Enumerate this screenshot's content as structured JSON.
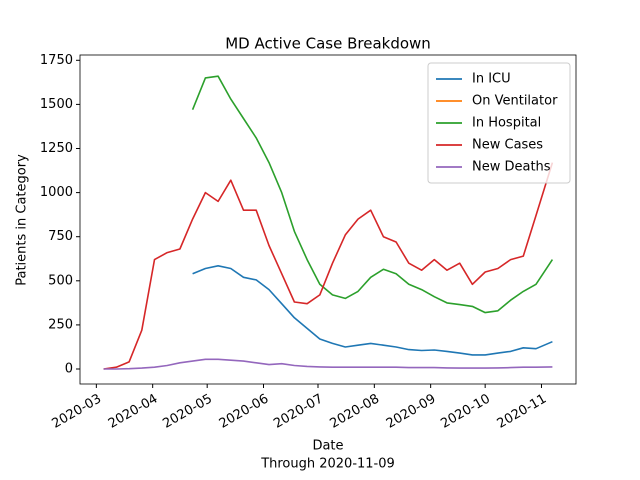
{
  "chart_data": {
    "type": "line",
    "title": "MD Active Case Breakdown",
    "xlabel": "Date",
    "xlabel_sub": "Through 2020-11-09",
    "ylabel": "Patients in Category",
    "x": [
      "2020-03-05",
      "2020-03-12",
      "2020-03-19",
      "2020-03-26",
      "2020-04-02",
      "2020-04-09",
      "2020-04-16",
      "2020-04-23",
      "2020-04-30",
      "2020-05-07",
      "2020-05-14",
      "2020-05-21",
      "2020-05-28",
      "2020-06-04",
      "2020-06-11",
      "2020-06-18",
      "2020-06-25",
      "2020-07-02",
      "2020-07-09",
      "2020-07-16",
      "2020-07-23",
      "2020-07-30",
      "2020-08-06",
      "2020-08-13",
      "2020-08-20",
      "2020-08-27",
      "2020-09-03",
      "2020-09-10",
      "2020-09-17",
      "2020-09-24",
      "2020-10-01",
      "2020-10-08",
      "2020-10-15",
      "2020-10-22",
      "2020-10-29",
      "2020-11-07"
    ],
    "series": [
      {
        "name": "In ICU",
        "color": "#1f77b4",
        "values": [
          null,
          null,
          null,
          null,
          null,
          null,
          null,
          540,
          570,
          585,
          570,
          520,
          505,
          450,
          370,
          290,
          230,
          170,
          145,
          125,
          135,
          145,
          135,
          125,
          110,
          105,
          108,
          100,
          90,
          80,
          80,
          90,
          100,
          120,
          115,
          155
        ]
      },
      {
        "name": "On Ventilator",
        "color": "#ff7f0e",
        "values": [
          null,
          null,
          null,
          null,
          null,
          null,
          null,
          null,
          null,
          null,
          null,
          null,
          null,
          null,
          null,
          null,
          null,
          null,
          null,
          null,
          null,
          null,
          null,
          null,
          null,
          null,
          null,
          null,
          null,
          null,
          null,
          null,
          null,
          null,
          null,
          null
        ]
      },
      {
        "name": "In Hospital",
        "color": "#2ca02c",
        "values": [
          null,
          null,
          null,
          null,
          null,
          null,
          null,
          1470,
          1650,
          1660,
          1530,
          1420,
          1310,
          1170,
          1000,
          780,
          620,
          480,
          420,
          400,
          440,
          520,
          565,
          540,
          480,
          450,
          410,
          375,
          365,
          355,
          320,
          330,
          390,
          440,
          480,
          620
        ]
      },
      {
        "name": "New Cases",
        "color": "#d62728",
        "values": [
          0,
          10,
          40,
          220,
          620,
          660,
          680,
          850,
          1000,
          950,
          1070,
          900,
          900,
          700,
          540,
          380,
          370,
          420,
          600,
          760,
          850,
          900,
          750,
          720,
          600,
          560,
          620,
          560,
          600,
          480,
          550,
          570,
          620,
          640,
          870,
          1170
        ]
      },
      {
        "name": "New Deaths",
        "color": "#9467bd",
        "values": [
          0,
          0,
          2,
          5,
          10,
          20,
          35,
          45,
          55,
          55,
          50,
          45,
          35,
          25,
          30,
          20,
          15,
          12,
          10,
          10,
          10,
          10,
          10,
          10,
          8,
          8,
          8,
          6,
          5,
          5,
          5,
          6,
          8,
          10,
          10,
          12
        ]
      }
    ],
    "xlim": [
      "2020-02-21",
      "2020-11-20"
    ],
    "xticks": [
      "2020-03",
      "2020-04",
      "2020-05",
      "2020-06",
      "2020-07",
      "2020-08",
      "2020-09",
      "2020-10",
      "2020-11"
    ],
    "ylim": [
      -85,
      1780
    ],
    "yticks": [
      0,
      250,
      500,
      750,
      1000,
      1250,
      1500,
      1750
    ],
    "legend": "upper right"
  }
}
